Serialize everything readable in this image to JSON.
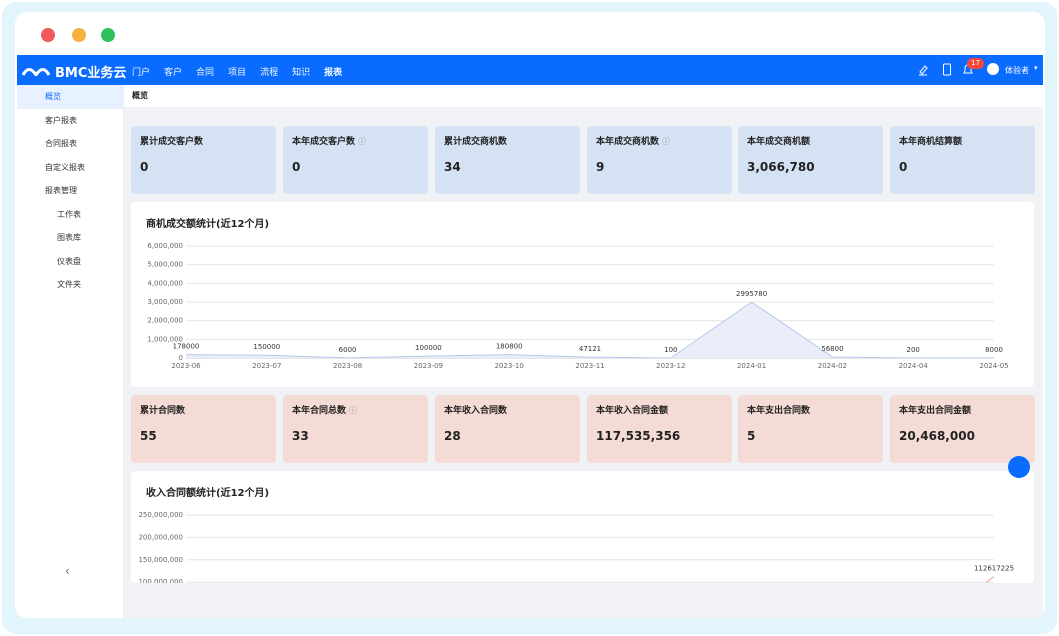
{
  "nav": {
    "logo": "BMC业务云",
    "items": [
      "门户",
      "客户",
      "合同",
      "项目",
      "流程",
      "知识",
      "报表"
    ],
    "notification_count": "17",
    "user": "体验者"
  },
  "sidebar": {
    "items": [
      "概览",
      "客户报表",
      "合同报表",
      "自定义报表",
      "报表管理"
    ],
    "sub_items": [
      "工作表",
      "图表库",
      "仪表盘",
      "文件夹"
    ]
  },
  "breadcrumb": "概览",
  "stats_top": [
    {
      "label": "累计成交客户数",
      "value": "0"
    },
    {
      "label": "本年成交客户数",
      "value": "0",
      "info": true
    },
    {
      "label": "累计成交商机数",
      "value": "34"
    },
    {
      "label": "本年成交商机数",
      "value": "9",
      "info": true
    },
    {
      "label": "本年成交商机额",
      "value": "3,066,780"
    },
    {
      "label": "本年商机结算额",
      "value": "0"
    }
  ],
  "stats_bottom": [
    {
      "label": "累计合同数",
      "value": "55"
    },
    {
      "label": "本年合同总数",
      "value": "33",
      "info": true
    },
    {
      "label": "本年收入合同数",
      "value": "28"
    },
    {
      "label": "本年收入合同金额",
      "value": "117,535,356"
    },
    {
      "label": "本年支出合同数",
      "value": "5"
    },
    {
      "label": "本年支出合同金额",
      "value": "20,468,000"
    }
  ],
  "charts": [
    {
      "type": "line",
      "title": "商机成交额统计(近12个月)",
      "color": "#b9c8ea",
      "categories": [
        "2023-06",
        "2023-07",
        "2023-08",
        "2023-09",
        "2023-10",
        "2023-11",
        "2023-12",
        "2024-01",
        "2024-02",
        "2024-04",
        "2024-05"
      ],
      "values": [
        178000,
        150000,
        6000,
        100000,
        180800,
        47121,
        100,
        2995780,
        56800,
        200,
        8000
      ],
      "ylim": [
        0,
        6000000
      ],
      "yticks": [
        0,
        {
          "value": 1000000,
          "label": "1,000,000"
        },
        {
          "value": 2000000,
          "label": "2,000,000"
        },
        {
          "value": 3000000,
          "label": "3,000,000"
        },
        {
          "value": 4000000,
          "label": "4,000,000"
        },
        {
          "value": 5000000,
          "label": "5,000,000"
        },
        {
          "value": 6000000,
          "label": "6,000,000"
        }
      ]
    },
    {
      "type": "line",
      "title": "收入合同额统计(近12个月)",
      "color": "#f2a89a",
      "values": [
        112617225
      ],
      "ylim": [
        0,
        250000000
      ],
      "yticks": [
        {
          "value": 100000000,
          "label": "100,000,000"
        },
        {
          "value": 150000000,
          "label": "150,000,000"
        },
        {
          "value": 200000000,
          "label": "200,000,000"
        },
        {
          "value": 250000000,
          "label": "250,000,000"
        }
      ]
    }
  ]
}
